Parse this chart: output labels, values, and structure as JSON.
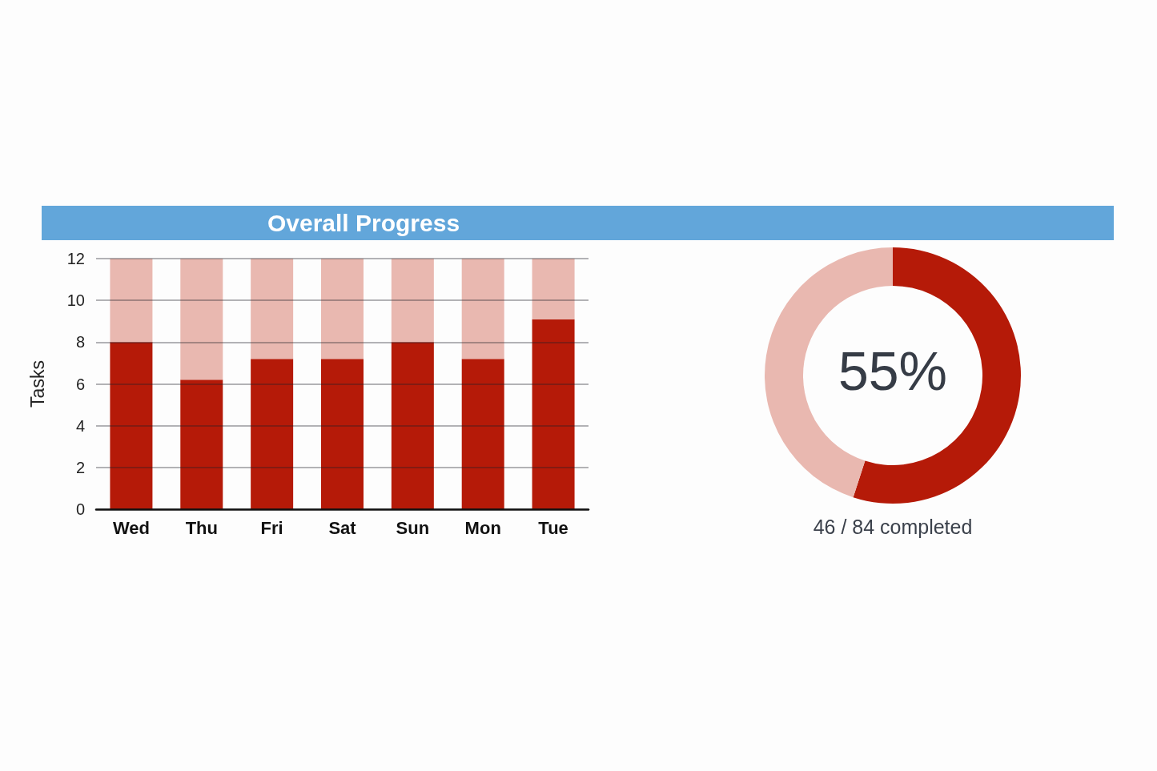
{
  "chart_data": [
    {
      "type": "bar",
      "title": "Overall Progress",
      "ylabel": "Tasks",
      "categories": [
        "Wed",
        "Thu",
        "Fri",
        "Sat",
        "Sun",
        "Mon",
        "Tue"
      ],
      "stacked": true,
      "series": [
        {
          "color": "#b51a08",
          "values": [
            8,
            6.2,
            7.2,
            7.2,
            8,
            7.2,
            9.1
          ]
        },
        {
          "color": "#e9b8b0",
          "values": [
            4,
            5.8,
            4.8,
            4.8,
            4,
            4.8,
            2.9
          ]
        }
      ],
      "ylim": [
        0,
        12
      ],
      "yticks": [
        0,
        2,
        4,
        6,
        8,
        10,
        12
      ],
      "grid": "y"
    },
    {
      "type": "donut",
      "categories": [
        null,
        null
      ],
      "values": [
        55,
        45
      ],
      "colors": [
        "#b51a08",
        "#e9b8b0"
      ],
      "annotations": [
        "55%",
        "46 / 84 completed"
      ]
    }
  ]
}
